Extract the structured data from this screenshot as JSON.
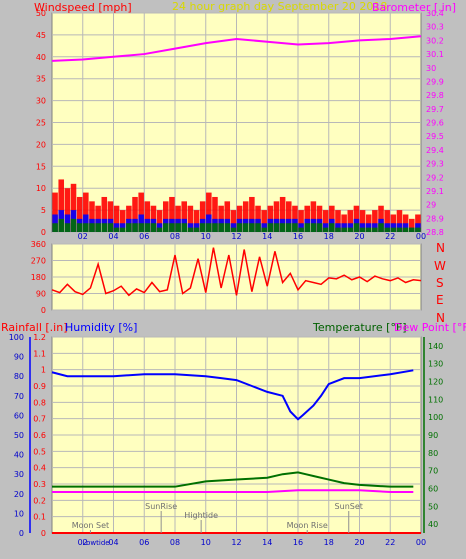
{
  "colors": {
    "background": "#c0c0c0",
    "plot_bg": "#ffffc0",
    "grid": "#b8b8b8",
    "red": "#ff0000",
    "magenta": "#ff00ff",
    "blue": "#0000ff",
    "green": "#007000",
    "dark_green": "#006000",
    "gold": "#d8d800",
    "navy": "#0000cc",
    "gray_text": "#707070"
  },
  "header": {
    "left": "Windspeed [mph]",
    "center": "24 hour graph day   September 20 2018",
    "right": "Barometer [.in]"
  },
  "footer_labels": {
    "rainfall": "Rainfall [.in]",
    "humidity": "Humidity [%]",
    "temperature": "Temperature [°F]",
    "dewpoint": "Dew Point [°F]"
  },
  "chart_data": [
    {
      "type": "bar",
      "id": "wind",
      "x_ticks": [
        "02",
        "04",
        "06",
        "08",
        "10",
        "12",
        "14",
        "16",
        "18",
        "20",
        "22",
        "00"
      ],
      "y_left": {
        "label": "Windspeed [mph]",
        "ticks": [
          "0",
          "5",
          "10",
          "15",
          "20",
          "25",
          "30",
          "35",
          "40",
          "45",
          "50"
        ],
        "range": [
          0,
          50
        ]
      },
      "y_right": {
        "label": "Barometer [.in]",
        "ticks": [
          "28.8",
          "28.9",
          "29",
          "29.1",
          "29.2",
          "29.3",
          "29.4",
          "29.5",
          "29.6",
          "29.7",
          "29.8",
          "29.9",
          "30",
          "30.1",
          "30.2",
          "30.3",
          "30.4"
        ],
        "range": [
          28.8,
          30.4
        ]
      },
      "series": [
        {
          "name": "Windspeed [mph]",
          "kind": "gust",
          "color": "#ff0000",
          "values": [
            9,
            12,
            10,
            11,
            8,
            9,
            7,
            6,
            8,
            7,
            6,
            5,
            6,
            8,
            9,
            7,
            6,
            5,
            7,
            8,
            6,
            7,
            6,
            5,
            7,
            9,
            8,
            6,
            7,
            5,
            6,
            7,
            8,
            6,
            5,
            6,
            7,
            8,
            7,
            6,
            5,
            6,
            7,
            6,
            5,
            6,
            5,
            4,
            5,
            6,
            5,
            4,
            5,
            6,
            5,
            4,
            5,
            4,
            3,
            4
          ]
        },
        {
          "kind": "speed",
          "color": "#0000ff",
          "values": [
            4,
            5,
            4,
            5,
            3,
            4,
            3,
            3,
            3,
            3,
            2,
            2,
            3,
            3,
            4,
            3,
            3,
            2,
            3,
            3,
            3,
            3,
            2,
            2,
            3,
            4,
            3,
            3,
            3,
            2,
            3,
            3,
            3,
            3,
            2,
            3,
            3,
            3,
            3,
            3,
            2,
            3,
            3,
            3,
            2,
            3,
            2,
            2,
            2,
            3,
            2,
            2,
            2,
            3,
            2,
            2,
            2,
            2,
            1,
            2
          ]
        },
        {
          "kind": "average",
          "color": "#007000",
          "values": [
            2,
            3,
            2,
            3,
            2,
            2,
            2,
            2,
            2,
            2,
            1,
            1,
            2,
            2,
            2,
            2,
            2,
            1,
            2,
            2,
            2,
            2,
            1,
            1,
            2,
            2,
            2,
            2,
            2,
            1,
            2,
            2,
            2,
            2,
            1,
            2,
            2,
            2,
            2,
            2,
            1,
            2,
            2,
            2,
            1,
            2,
            1,
            1,
            1,
            2,
            1,
            1,
            1,
            2,
            1,
            1,
            1,
            1,
            1,
            1
          ]
        },
        {
          "name": "Barometer [.in]",
          "kind": "line",
          "color": "#ff00ff",
          "x": [
            0,
            2,
            4,
            6,
            8,
            10,
            12,
            14,
            16,
            18,
            20,
            22,
            24
          ],
          "values": [
            30.05,
            30.06,
            30.08,
            30.1,
            30.14,
            30.18,
            30.21,
            30.19,
            30.17,
            30.18,
            30.2,
            30.21,
            30.23
          ]
        }
      ]
    },
    {
      "type": "line",
      "id": "direction",
      "y_left": {
        "ticks": [
          "0",
          "90",
          "180",
          "270",
          "360"
        ],
        "range": [
          0,
          360
        ]
      },
      "y_right": {
        "ticks": [
          "N",
          "W",
          "S",
          "E",
          "N"
        ]
      },
      "series": [
        {
          "kind": "line",
          "color": "#ff0000",
          "x": [
            0,
            0.5,
            1,
            1.5,
            2,
            2.5,
            3,
            3.5,
            4,
            4.5,
            5,
            5.5,
            6,
            6.5,
            7,
            7.5,
            8,
            8.5,
            9,
            9.5,
            10,
            10.5,
            11,
            11.5,
            12,
            12.5,
            13,
            13.5,
            14,
            14.5,
            15,
            15.5,
            16,
            16.5,
            17,
            17.5,
            18,
            18.5,
            19,
            19.5,
            20,
            20.5,
            21,
            21.5,
            22,
            22.5,
            23,
            23.5,
            24
          ],
          "values": [
            110,
            95,
            140,
            100,
            85,
            120,
            250,
            90,
            105,
            130,
            80,
            115,
            95,
            150,
            100,
            110,
            300,
            90,
            120,
            280,
            95,
            340,
            120,
            300,
            80,
            330,
            100,
            290,
            130,
            320,
            150,
            200,
            110,
            160,
            150,
            140,
            175,
            170,
            190,
            165,
            180,
            155,
            185,
            170,
            160,
            175,
            150,
            165,
            160
          ]
        }
      ]
    },
    {
      "type": "line",
      "id": "temp_hum",
      "x_ticks": [
        "02",
        "04",
        "06",
        "08",
        "10",
        "12",
        "14",
        "16",
        "18",
        "20",
        "22",
        "00"
      ],
      "y_rain": {
        "label": "Rainfall [.in]",
        "ticks": [
          "0",
          "0.1",
          "0.2",
          "0.3",
          "0.4",
          "0.5",
          "0.6",
          "0.7",
          "0.8",
          "0.9",
          "1",
          "1.1",
          "1.2"
        ],
        "range": [
          0,
          1.2
        ]
      },
      "y_humidity": {
        "label": "Humidity [%]",
        "ticks": [
          "0",
          "10",
          "20",
          "30",
          "40",
          "50",
          "60",
          "70",
          "80",
          "90",
          "100"
        ],
        "range": [
          0,
          100
        ]
      },
      "y_temp": {
        "label": "Temperature [°F]",
        "ticks": [
          "40",
          "50",
          "60",
          "70",
          "80",
          "90",
          "100",
          "110",
          "120",
          "130",
          "140"
        ],
        "range": [
          35,
          145
        ]
      },
      "series": [
        {
          "name": "Humidity [%]",
          "color": "#0000ff",
          "x": [
            0,
            0.5,
            1,
            2,
            4,
            6,
            8,
            10,
            11,
            12,
            13,
            14,
            15,
            15.5,
            16,
            16.3,
            17,
            17.5,
            18,
            19,
            20,
            22,
            23.5
          ],
          "values": [
            82,
            81,
            80,
            80,
            80,
            81,
            81,
            80,
            79,
            78,
            75,
            72,
            70,
            62,
            58,
            60,
            65,
            70,
            76,
            79,
            79,
            81,
            83
          ]
        },
        {
          "name": "Temperature [°F]",
          "color": "#007000",
          "x": [
            0,
            2,
            4,
            6,
            8,
            10,
            12,
            14,
            15,
            16,
            16.5,
            17,
            18,
            19,
            20,
            22,
            23.5
          ],
          "values": [
            61,
            61,
            61,
            61,
            61,
            64,
            65,
            66,
            68,
            69,
            68,
            67,
            65,
            63,
            62,
            61,
            61
          ]
        },
        {
          "name": "Dew Point [°F]",
          "color": "#ff00ff",
          "x": [
            0,
            2,
            4,
            6,
            8,
            10,
            12,
            14,
            16,
            18,
            20,
            22,
            23.5
          ],
          "values": [
            58,
            58,
            58,
            58,
            58,
            58,
            58,
            58,
            59,
            59,
            59,
            58,
            58
          ]
        },
        {
          "name": "Rainfall [.in]",
          "color": "#ff0000",
          "x": [
            0,
            24
          ],
          "values": [
            0,
            0
          ]
        }
      ],
      "annotations": [
        {
          "text": "Moon Set",
          "hour": 2.5,
          "row": "lower"
        },
        {
          "text": "SunRise",
          "hour": 7.1,
          "row": "upper"
        },
        {
          "text": "Hightide",
          "hour": 9.7,
          "row": "middle"
        },
        {
          "text": "SunSet",
          "hour": 19.3,
          "row": "upper"
        },
        {
          "text": "Moon Rise",
          "hour": 16.6,
          "row": "lower"
        }
      ],
      "bottom_marker": {
        "text": "Lowtide",
        "hour": 2.6
      }
    }
  ]
}
